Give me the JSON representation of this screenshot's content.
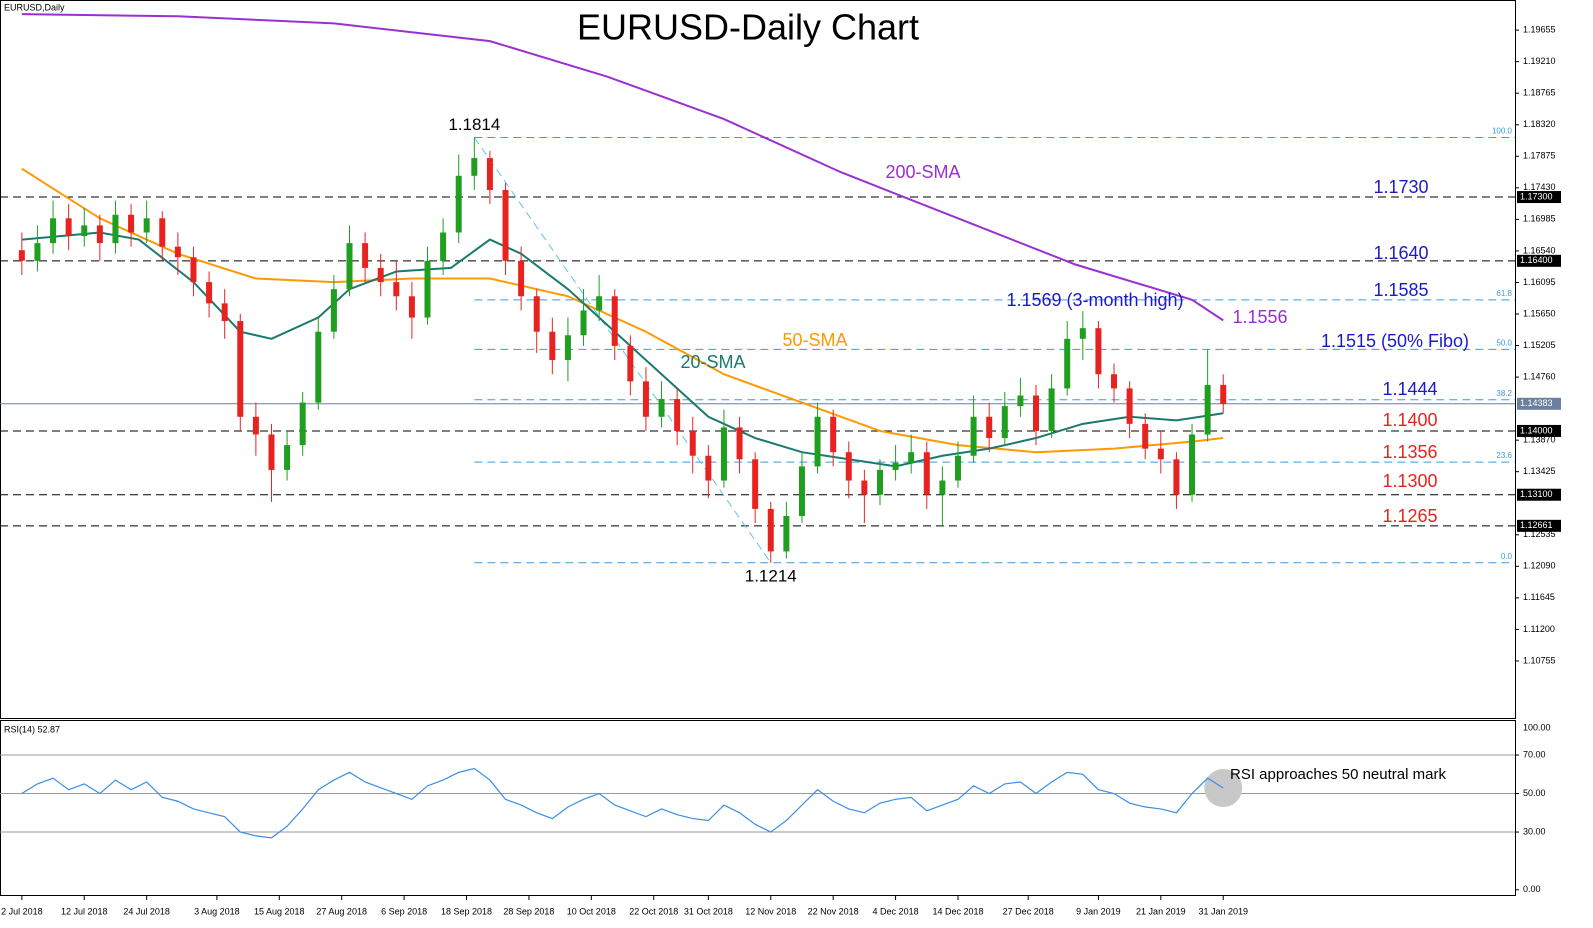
{
  "chart_data": [
    {
      "type": "candlestick",
      "title": "EURUSD-Daily Chart",
      "symbol_label": "EURUSD,Daily",
      "up_color": "#1f9e1f",
      "down_color": "#e8231f",
      "xlim": [
        -2.8,
        191.4
      ],
      "ylim": [
        1.0995,
        1.2008
      ],
      "xticks": [
        {
          "value": 0,
          "label": "2 Jul 2018"
        },
        {
          "value": 8,
          "label": "12 Jul 2018"
        },
        {
          "value": 16,
          "label": "24 Jul 2018"
        },
        {
          "value": 25,
          "label": "3 Aug 2018"
        },
        {
          "value": 33,
          "label": "15 Aug 2018"
        },
        {
          "value": 41,
          "label": "27 Aug 2018"
        },
        {
          "value": 49,
          "label": "6 Sep 2018"
        },
        {
          "value": 57,
          "label": "18 Sep 2018"
        },
        {
          "value": 65,
          "label": "28 Sep 2018"
        },
        {
          "value": 73,
          "label": "10 Oct 2018"
        },
        {
          "value": 81,
          "label": "22 Oct 2018"
        },
        {
          "value": 88,
          "label": "31 Oct 2018"
        },
        {
          "value": 96,
          "label": "12 Nov 2018"
        },
        {
          "value": 104,
          "label": "22 Nov 2018"
        },
        {
          "value": 112,
          "label": "4 Dec 2018"
        },
        {
          "value": 120,
          "label": "14 Dec 2018"
        },
        {
          "value": 129,
          "label": "27 Dec 2018"
        },
        {
          "value": 138,
          "label": "9 Jan 2019"
        },
        {
          "value": 146,
          "label": "21 Jan 2019"
        },
        {
          "value": 154,
          "label": "31 Jan 2019"
        }
      ],
      "yticks": [
        1.19655,
        {
          "value": 1.1921,
          "label": "1.19210"
        },
        1.18765,
        {
          "value": 1.1832,
          "label": "1.18320"
        },
        1.17875,
        {
          "value": 1.1743,
          "label": "1.17430"
        },
        1.16985,
        {
          "value": 1.1654,
          "label": "1.16540"
        },
        1.16095,
        {
          "value": 1.1565,
          "label": "1.15650"
        },
        1.15205,
        {
          "value": 1.1476,
          "label": "1.14760"
        },
        {
          "value": 1.1387,
          "label": "1.13870"
        },
        1.13425,
        1.12535,
        {
          "value": 1.1209,
          "label": "1.12090"
        },
        1.11645,
        {
          "value": 1.112,
          "label": "1.11200"
        },
        1.10755
      ],
      "x": [
        0,
        2,
        4,
        6,
        8,
        10,
        12,
        14,
        16,
        18,
        20,
        22,
        24,
        26,
        28,
        30,
        32,
        34,
        36,
        38,
        40,
        42,
        44,
        46,
        48,
        50,
        52,
        54,
        56,
        58,
        60,
        62,
        64,
        66,
        68,
        70,
        72,
        74,
        76,
        78,
        80,
        82,
        84,
        86,
        88,
        90,
        92,
        94,
        96,
        98,
        100,
        102,
        104,
        106,
        108,
        110,
        112,
        114,
        116,
        118,
        120,
        122,
        124,
        126,
        128,
        130,
        132,
        134,
        136,
        138,
        140,
        142,
        144,
        146,
        148,
        150,
        152,
        154
      ],
      "ohlc": [
        [
          1.1655,
          1.168,
          1.162,
          1.164
        ],
        [
          1.164,
          1.169,
          1.1625,
          1.1665
        ],
        [
          1.1665,
          1.1725,
          1.165,
          1.17
        ],
        [
          1.17,
          1.172,
          1.1655,
          1.1675
        ],
        [
          1.1675,
          1.1715,
          1.166,
          1.169
        ],
        [
          1.169,
          1.1705,
          1.164,
          1.1665
        ],
        [
          1.1665,
          1.1725,
          1.165,
          1.1705
        ],
        [
          1.1705,
          1.172,
          1.166,
          1.168
        ],
        [
          1.168,
          1.1725,
          1.1665,
          1.17
        ],
        [
          1.17,
          1.171,
          1.164,
          1.166
        ],
        [
          1.166,
          1.168,
          1.162,
          1.1645
        ],
        [
          1.1645,
          1.166,
          1.159,
          1.161
        ],
        [
          1.161,
          1.1625,
          1.156,
          1.158
        ],
        [
          1.158,
          1.16,
          1.153,
          1.1555
        ],
        [
          1.1555,
          1.1565,
          1.14,
          1.142
        ],
        [
          1.142,
          1.144,
          1.1365,
          1.1395
        ],
        [
          1.1395,
          1.141,
          1.13,
          1.1345
        ],
        [
          1.1345,
          1.14,
          1.133,
          1.138
        ],
        [
          1.138,
          1.1455,
          1.1365,
          1.144
        ],
        [
          1.144,
          1.156,
          1.143,
          1.154
        ],
        [
          1.154,
          1.162,
          1.153,
          1.16
        ],
        [
          1.16,
          1.169,
          1.159,
          1.1665
        ],
        [
          1.1665,
          1.168,
          1.161,
          1.163
        ],
        [
          1.163,
          1.165,
          1.159,
          1.161
        ],
        [
          1.161,
          1.164,
          1.157,
          1.159
        ],
        [
          1.159,
          1.161,
          1.153,
          1.156
        ],
        [
          1.156,
          1.166,
          1.155,
          1.164
        ],
        [
          1.164,
          1.17,
          1.162,
          1.168
        ],
        [
          1.168,
          1.179,
          1.1665,
          1.176
        ],
        [
          1.176,
          1.1814,
          1.174,
          1.1785
        ],
        [
          1.1785,
          1.1795,
          1.172,
          1.174
        ],
        [
          1.174,
          1.175,
          1.162,
          1.164
        ],
        [
          1.164,
          1.166,
          1.157,
          1.159
        ],
        [
          1.159,
          1.16,
          1.151,
          1.154
        ],
        [
          1.154,
          1.156,
          1.148,
          1.15
        ],
        [
          1.15,
          1.156,
          1.147,
          1.1535
        ],
        [
          1.1535,
          1.16,
          1.152,
          1.157
        ],
        [
          1.157,
          1.162,
          1.1555,
          1.159
        ],
        [
          1.159,
          1.16,
          1.15,
          1.152
        ],
        [
          1.152,
          1.1535,
          1.145,
          1.147
        ],
        [
          1.147,
          1.149,
          1.14,
          1.142
        ],
        [
          1.142,
          1.147,
          1.1405,
          1.1445
        ],
        [
          1.1445,
          1.146,
          1.138,
          1.14
        ],
        [
          1.14,
          1.142,
          1.134,
          1.1365
        ],
        [
          1.1365,
          1.138,
          1.1305,
          1.133
        ],
        [
          1.133,
          1.143,
          1.132,
          1.1405
        ],
        [
          1.1405,
          1.142,
          1.134,
          1.136
        ],
        [
          1.136,
          1.137,
          1.127,
          1.129
        ],
        [
          1.129,
          1.13,
          1.1214,
          1.123
        ],
        [
          1.123,
          1.13,
          1.122,
          1.128
        ],
        [
          1.128,
          1.137,
          1.127,
          1.135
        ],
        [
          1.135,
          1.144,
          1.134,
          1.142
        ],
        [
          1.142,
          1.143,
          1.135,
          1.137
        ],
        [
          1.137,
          1.1385,
          1.1305,
          1.133
        ],
        [
          1.133,
          1.1345,
          1.127,
          1.131
        ],
        [
          1.131,
          1.136,
          1.1295,
          1.1345
        ],
        [
          1.1345,
          1.138,
          1.133,
          1.1355
        ],
        [
          1.1355,
          1.1395,
          1.134,
          1.137
        ],
        [
          1.137,
          1.1385,
          1.129,
          1.131
        ],
        [
          1.131,
          1.135,
          1.1265,
          1.133
        ],
        [
          1.133,
          1.1385,
          1.132,
          1.1365
        ],
        [
          1.1365,
          1.145,
          1.1355,
          1.142
        ],
        [
          1.142,
          1.144,
          1.137,
          1.139
        ],
        [
          1.139,
          1.1455,
          1.138,
          1.1435
        ],
        [
          1.1435,
          1.1475,
          1.142,
          1.145
        ],
        [
          1.145,
          1.1465,
          1.138,
          1.14
        ],
        [
          1.14,
          1.148,
          1.139,
          1.146
        ],
        [
          1.146,
          1.1555,
          1.145,
          1.153
        ],
        [
          1.153,
          1.1569,
          1.15,
          1.1545
        ],
        [
          1.1545,
          1.1555,
          1.146,
          1.148
        ],
        [
          1.148,
          1.1495,
          1.144,
          1.146
        ],
        [
          1.146,
          1.147,
          1.139,
          1.141
        ],
        [
          1.141,
          1.1425,
          1.136,
          1.1375
        ],
        [
          1.1375,
          1.14,
          1.134,
          1.136
        ],
        [
          1.136,
          1.137,
          1.129,
          1.131
        ],
        [
          1.131,
          1.141,
          1.13,
          1.1395
        ],
        [
          1.1395,
          1.1515,
          1.1385,
          1.1465
        ],
        [
          1.1465,
          1.148,
          1.1425,
          1.1438
        ]
      ],
      "series": [
        {
          "name": "200-SMA",
          "color": "#9b30d0",
          "x": [
            0,
            20,
            40,
            60,
            75,
            90,
            105,
            120,
            135,
            150,
            154
          ],
          "values": [
            1.1988,
            1.1985,
            1.1975,
            1.195,
            1.19,
            1.184,
            1.1765,
            1.17,
            1.1635,
            1.1585,
            1.1556
          ]
        },
        {
          "name": "50-SMA",
          "color": "#ff9900",
          "x": [
            0,
            10,
            20,
            30,
            40,
            50,
            60,
            70,
            80,
            90,
            100,
            110,
            120,
            130,
            140,
            150,
            154
          ],
          "values": [
            1.177,
            1.17,
            1.165,
            1.1615,
            1.161,
            1.1615,
            1.1615,
            1.159,
            1.154,
            1.148,
            1.144,
            1.14,
            1.138,
            1.137,
            1.1375,
            1.1385,
            1.139
          ]
        },
        {
          "name": "20-SMA",
          "color": "#1a7a6e",
          "x": [
            0,
            10,
            15,
            22,
            28,
            32,
            38,
            42,
            48,
            55,
            60,
            64,
            70,
            76,
            82,
            88,
            94,
            100,
            106,
            112,
            118,
            124,
            130,
            136,
            142,
            148,
            154
          ],
          "values": [
            1.167,
            1.168,
            1.167,
            1.161,
            1.154,
            1.153,
            1.156,
            1.16,
            1.1625,
            1.163,
            1.167,
            1.165,
            1.16,
            1.154,
            1.148,
            1.142,
            1.139,
            1.137,
            1.136,
            1.135,
            1.1365,
            1.1375,
            1.139,
            1.141,
            1.142,
            1.1415,
            1.1425
          ]
        }
      ],
      "hlines": [
        {
          "value": 1.173,
          "label": "1.17300"
        },
        {
          "value": 1.164,
          "label": "1.16400"
        },
        {
          "value": 1.14,
          "label": "1.14000"
        },
        {
          "value": 1.131,
          "label": "1.13100"
        },
        {
          "value": 1.12661,
          "label": "1.12661"
        }
      ],
      "last_price": {
        "value": 1.14383,
        "label": "1.14383"
      },
      "fibo": {
        "from_x": 58,
        "to_x": 96,
        "color": "#3a9be0",
        "levels": [
          {
            "price": 1.1814,
            "ratio": "100.0"
          },
          {
            "price": 1.1585,
            "ratio": "61.8"
          },
          {
            "price": 1.1515,
            "ratio": "50.0"
          },
          {
            "price": 1.1444,
            "ratio": "38.2"
          },
          {
            "price": 1.1356,
            "ratio": "23.6"
          },
          {
            "price": 1.1214,
            "ratio": "0.0"
          }
        ]
      },
      "extremes": [
        {
          "x": 58,
          "value": 1.1814
        },
        {
          "x": 96,
          "value": 1.1214
        }
      ],
      "notes": [
        {
          "text": "1.1569 (3-month high)",
          "color": "#1a1acc"
        },
        {
          "text": "1.1556",
          "color": "#9b30d0"
        },
        {
          "text": "1.1730",
          "color": "#1a1acc"
        },
        {
          "text": "1.1640",
          "color": "#1a1acc"
        },
        {
          "text": "1.1585",
          "color": "#1a1acc"
        },
        {
          "text": "1.1515 (50% Fibo)",
          "color": "#1a1acc"
        },
        {
          "text": "1.1444",
          "color": "#1a1acc"
        },
        {
          "text": "1.1400",
          "color": "#e8231f"
        },
        {
          "text": "1.1356",
          "color": "#e8231f"
        },
        {
          "text": "1.1300",
          "color": "#e8231f"
        },
        {
          "text": "1.1265",
          "color": "#e8231f"
        }
      ]
    },
    {
      "type": "line",
      "title": "RSI(14) 52.87",
      "note": "RSI approaches 50 neutral mark",
      "color": "#3a8ee6",
      "ylim": [
        -2.7,
        88.2
      ],
      "yticks": [
        {
          "value": 70,
          "label": "70.00"
        },
        {
          "value": 50,
          "label": "50.00"
        },
        {
          "value": 30,
          "label": "30.00"
        },
        {
          "value": 0,
          "label": "0.00"
        }
      ],
      "max_label": {
        "value": 100,
        "label": "100.00"
      },
      "grid": true,
      "x": [
        0,
        2,
        4,
        6,
        8,
        10,
        12,
        14,
        16,
        18,
        20,
        22,
        24,
        26,
        28,
        30,
        32,
        34,
        36,
        38,
        40,
        42,
        44,
        46,
        48,
        50,
        52,
        54,
        56,
        58,
        60,
        62,
        64,
        66,
        68,
        70,
        72,
        74,
        76,
        78,
        80,
        82,
        84,
        86,
        88,
        90,
        92,
        94,
        96,
        98,
        100,
        102,
        104,
        106,
        108,
        110,
        112,
        114,
        116,
        118,
        120,
        122,
        124,
        126,
        128,
        130,
        132,
        134,
        136,
        138,
        140,
        142,
        144,
        146,
        148,
        150,
        152,
        154
      ],
      "values": [
        50,
        55,
        58,
        52,
        55,
        50,
        57,
        52,
        56,
        48,
        46,
        42,
        40,
        38,
        30,
        28,
        27,
        33,
        42,
        52,
        57,
        61,
        56,
        53,
        50,
        47,
        54,
        57,
        61,
        63,
        57,
        47,
        44,
        40,
        37,
        43,
        47,
        50,
        44,
        41,
        38,
        42,
        39,
        37,
        36,
        44,
        40,
        34,
        30,
        36,
        44,
        52,
        46,
        42,
        40,
        45,
        47,
        48,
        41,
        44,
        47,
        54,
        50,
        55,
        56,
        50,
        56,
        61,
        60,
        52,
        50,
        45,
        43,
        42,
        40,
        50,
        58,
        52.87
      ]
    }
  ]
}
